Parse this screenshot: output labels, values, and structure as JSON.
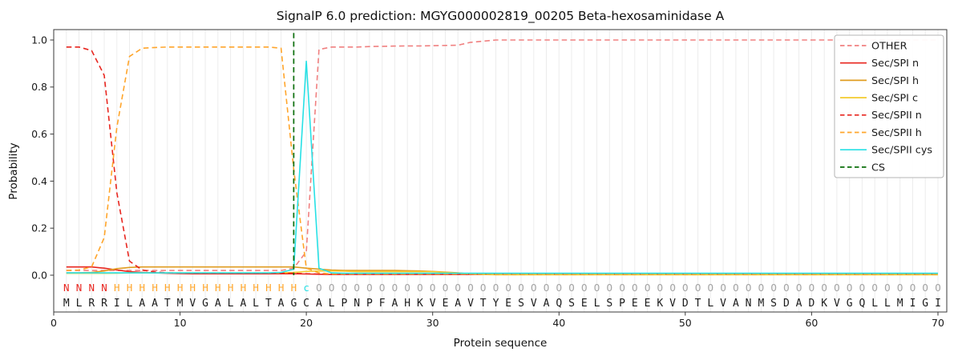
{
  "chart_data": {
    "type": "line",
    "title": "SignalP 6.0 prediction: MGYG000002819_00205 Beta-hexosaminidase A",
    "xlabel": "Protein sequence",
    "ylabel": "Probability",
    "xlim": [
      0,
      70.7
    ],
    "ylim": [
      -0.16,
      1.05
    ],
    "xticks": [
      0,
      10,
      20,
      30,
      40,
      50,
      60,
      70
    ],
    "yticks": [
      0.0,
      0.2,
      0.4,
      0.6,
      0.8,
      1.0
    ],
    "grid": "vertical-per-residue",
    "legend_position": "upper right",
    "series": [
      {
        "name": "OTHER",
        "color": "#f08080",
        "style": "dashed",
        "values": [
          0.02,
          0.02,
          0.02,
          0.02,
          0.02,
          0.02,
          0.02,
          0.02,
          0.02,
          0.02,
          0.02,
          0.02,
          0.02,
          0.02,
          0.02,
          0.02,
          0.02,
          0.02,
          0.03,
          0.1,
          0.96,
          0.97,
          0.97,
          0.97,
          0.972,
          0.973,
          0.974,
          0.975,
          0.975,
          0.976,
          0.977,
          0.978,
          0.99,
          0.995,
          1.0,
          1.0,
          1.0,
          1.0,
          1.0,
          1.0,
          1.0,
          1.0,
          1.0,
          1.0,
          1.0,
          1.0,
          1.0,
          1.0,
          1.0,
          1.0,
          1.0,
          1.0,
          1.0,
          1.0,
          1.0,
          1.0,
          1.0,
          1.0,
          1.0,
          1.0,
          1.0,
          1.0,
          1.0,
          1.0,
          1.0,
          1.0,
          1.0,
          1.0,
          1.0,
          1.0
        ]
      },
      {
        "name": "Sec/SPI n",
        "color": "#e8261f",
        "style": "solid",
        "values": [
          0.035,
          0.035,
          0.035,
          0.03,
          0.022,
          0.015,
          0.012,
          0.01,
          0.008,
          0.007,
          0.006,
          0.006,
          0.006,
          0.006,
          0.006,
          0.006,
          0.006,
          0.006,
          0.006,
          0.005,
          0.004,
          0.003,
          0.003,
          0.003,
          0.003,
          0.003,
          0.003,
          0.003,
          0.003,
          0.003,
          0.003,
          0.003,
          0.003,
          0.003,
          0.003,
          0.003,
          0.003,
          0.003,
          0.003,
          0.003,
          0.003,
          0.003,
          0.003,
          0.003,
          0.003,
          0.003,
          0.003,
          0.003,
          0.003,
          0.003,
          0.003,
          0.003,
          0.003,
          0.003,
          0.003,
          0.003,
          0.003,
          0.003,
          0.003,
          0.003,
          0.003,
          0.003,
          0.003,
          0.003,
          0.003,
          0.003,
          0.003,
          0.003,
          0.003,
          0.003
        ]
      },
      {
        "name": "Sec/SPI h",
        "color": "#e09c20",
        "style": "solid",
        "values": [
          0.01,
          0.01,
          0.012,
          0.018,
          0.028,
          0.033,
          0.035,
          0.035,
          0.035,
          0.035,
          0.035,
          0.035,
          0.035,
          0.035,
          0.035,
          0.035,
          0.035,
          0.035,
          0.035,
          0.03,
          0.026,
          0.022,
          0.02,
          0.02,
          0.02,
          0.02,
          0.02,
          0.019,
          0.018,
          0.016,
          0.013,
          0.01,
          0.005,
          0.004,
          0.003,
          0.003,
          0.003,
          0.003,
          0.003,
          0.003,
          0.003,
          0.003,
          0.003,
          0.003,
          0.003,
          0.003,
          0.003,
          0.003,
          0.003,
          0.003,
          0.003,
          0.003,
          0.003,
          0.003,
          0.003,
          0.003,
          0.003,
          0.003,
          0.003,
          0.003,
          0.003,
          0.003,
          0.003,
          0.003,
          0.003,
          0.003,
          0.003,
          0.003,
          0.003,
          0.003
        ]
      },
      {
        "name": "Sec/SPI c",
        "color": "#f3cb2e",
        "style": "solid",
        "values": [
          0.008,
          0.008,
          0.008,
          0.008,
          0.009,
          0.01,
          0.01,
          0.01,
          0.01,
          0.01,
          0.01,
          0.01,
          0.01,
          0.01,
          0.01,
          0.01,
          0.01,
          0.01,
          0.012,
          0.016,
          0.018,
          0.018,
          0.017,
          0.015,
          0.015,
          0.015,
          0.015,
          0.015,
          0.015,
          0.015,
          0.012,
          0.009,
          0.005,
          0.003,
          0.002,
          0.002,
          0.002,
          0.002,
          0.002,
          0.002,
          0.002,
          0.002,
          0.002,
          0.002,
          0.002,
          0.002,
          0.002,
          0.002,
          0.002,
          0.002,
          0.002,
          0.002,
          0.002,
          0.002,
          0.002,
          0.002,
          0.002,
          0.002,
          0.002,
          0.002,
          0.002,
          0.002,
          0.002,
          0.002,
          0.002,
          0.002,
          0.002,
          0.002,
          0.002,
          0.002
        ]
      },
      {
        "name": "Sec/SPII n",
        "color": "#e8261f",
        "style": "dashed",
        "values": [
          0.97,
          0.97,
          0.955,
          0.85,
          0.35,
          0.06,
          0.022,
          0.014,
          0.01,
          0.009,
          0.008,
          0.008,
          0.008,
          0.008,
          0.008,
          0.008,
          0.008,
          0.008,
          0.008,
          0.006,
          0.005,
          0.005,
          0.005,
          0.005,
          0.005,
          0.005,
          0.005,
          0.005,
          0.005,
          0.005,
          0.005,
          0.005,
          0.005,
          0.005,
          0.005,
          0.005,
          0.005,
          0.005,
          0.005,
          0.005,
          0.005,
          0.005,
          0.005,
          0.005,
          0.005,
          0.005,
          0.005,
          0.005,
          0.005,
          0.005,
          0.005,
          0.005,
          0.005,
          0.005,
          0.005,
          0.005,
          0.005,
          0.005,
          0.005,
          0.005,
          0.005,
          0.005,
          0.005,
          0.005,
          0.005,
          0.005,
          0.005,
          0.005,
          0.005,
          0.005
        ]
      },
      {
        "name": "Sec/SPII h",
        "color": "#ffa52b",
        "style": "dashed",
        "values": [
          0.02,
          0.022,
          0.035,
          0.16,
          0.63,
          0.93,
          0.965,
          0.968,
          0.97,
          0.97,
          0.97,
          0.97,
          0.97,
          0.97,
          0.97,
          0.97,
          0.97,
          0.965,
          0.45,
          0.03,
          0.01,
          0.005,
          0.005,
          0.005,
          0.005,
          0.005,
          0.005,
          0.005,
          0.005,
          0.005,
          0.005,
          0.005,
          0.005,
          0.005,
          0.005,
          0.005,
          0.005,
          0.005,
          0.005,
          0.005,
          0.005,
          0.005,
          0.005,
          0.005,
          0.005,
          0.005,
          0.005,
          0.005,
          0.005,
          0.005,
          0.005,
          0.005,
          0.005,
          0.005,
          0.005,
          0.005,
          0.005,
          0.005,
          0.005,
          0.005,
          0.005,
          0.005,
          0.005,
          0.005,
          0.005,
          0.005,
          0.005,
          0.005,
          0.005,
          0.005
        ]
      },
      {
        "name": "Sec/SPII cys",
        "color": "#27e0e5",
        "style": "solid",
        "values": [
          0.01,
          0.01,
          0.01,
          0.01,
          0.01,
          0.01,
          0.01,
          0.01,
          0.01,
          0.01,
          0.01,
          0.01,
          0.01,
          0.01,
          0.01,
          0.01,
          0.01,
          0.012,
          0.025,
          0.91,
          0.03,
          0.01,
          0.008,
          0.008,
          0.008,
          0.008,
          0.008,
          0.008,
          0.008,
          0.008,
          0.008,
          0.008,
          0.008,
          0.008,
          0.008,
          0.008,
          0.008,
          0.008,
          0.008,
          0.008,
          0.008,
          0.008,
          0.008,
          0.008,
          0.008,
          0.008,
          0.008,
          0.008,
          0.008,
          0.008,
          0.008,
          0.008,
          0.008,
          0.008,
          0.008,
          0.008,
          0.008,
          0.008,
          0.008,
          0.008,
          0.008,
          0.008,
          0.008,
          0.008,
          0.008,
          0.008,
          0.008,
          0.008,
          0.008,
          0.008
        ]
      }
    ],
    "cs_line": {
      "name": "CS",
      "x": 19,
      "color": "#0a6e0a",
      "style": "dashed"
    },
    "sequence": "MLRRILAATMVGALALTAGCALPNPFAHKVEAVTYESVAQSELSPEEKVDTLVANMSDADKVGQLLMIGI",
    "annotation": "NNNNHHHHHHHHHHHHHHHcOOOOOOOOOOOOOOOOOOOOOOOOOOOOOOOOOOOOOOOOOOOOOOOOOO",
    "annotation_colors": {
      "N": "#e8261f",
      "H": "#ffa52b",
      "c": "#27e0e5",
      "O": "#a3a3a3"
    },
    "sequence_color": "#1a1a1a",
    "legend_labels": [
      "OTHER",
      "Sec/SPI n",
      "Sec/SPI h",
      "Sec/SPI c",
      "Sec/SPII n",
      "Sec/SPII h",
      "Sec/SPII cys",
      "CS"
    ]
  }
}
